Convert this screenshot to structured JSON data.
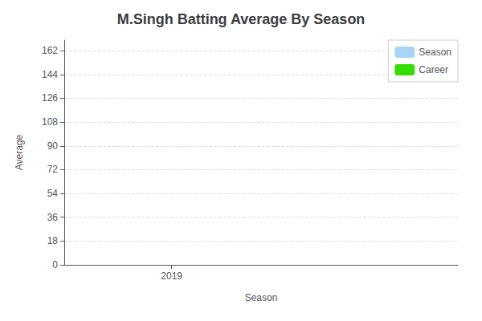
{
  "chart_data": {
    "type": "bar",
    "title": "M.Singh Batting Average By Season",
    "xlabel": "Season",
    "ylabel": "Average",
    "x": [],
    "series": [
      {
        "name": "Season",
        "color": "#aad4f5",
        "values": []
      },
      {
        "name": "Career",
        "color": "#33dd00",
        "values": []
      }
    ],
    "xlim": [
      2018.7,
      2019.8
    ],
    "xticks": [
      2019
    ],
    "ylim": [
      0,
      170
    ],
    "yticks": [
      0,
      18,
      36,
      54,
      72,
      90,
      108,
      126,
      144,
      162
    ],
    "grid": true,
    "legend": "upper right"
  }
}
